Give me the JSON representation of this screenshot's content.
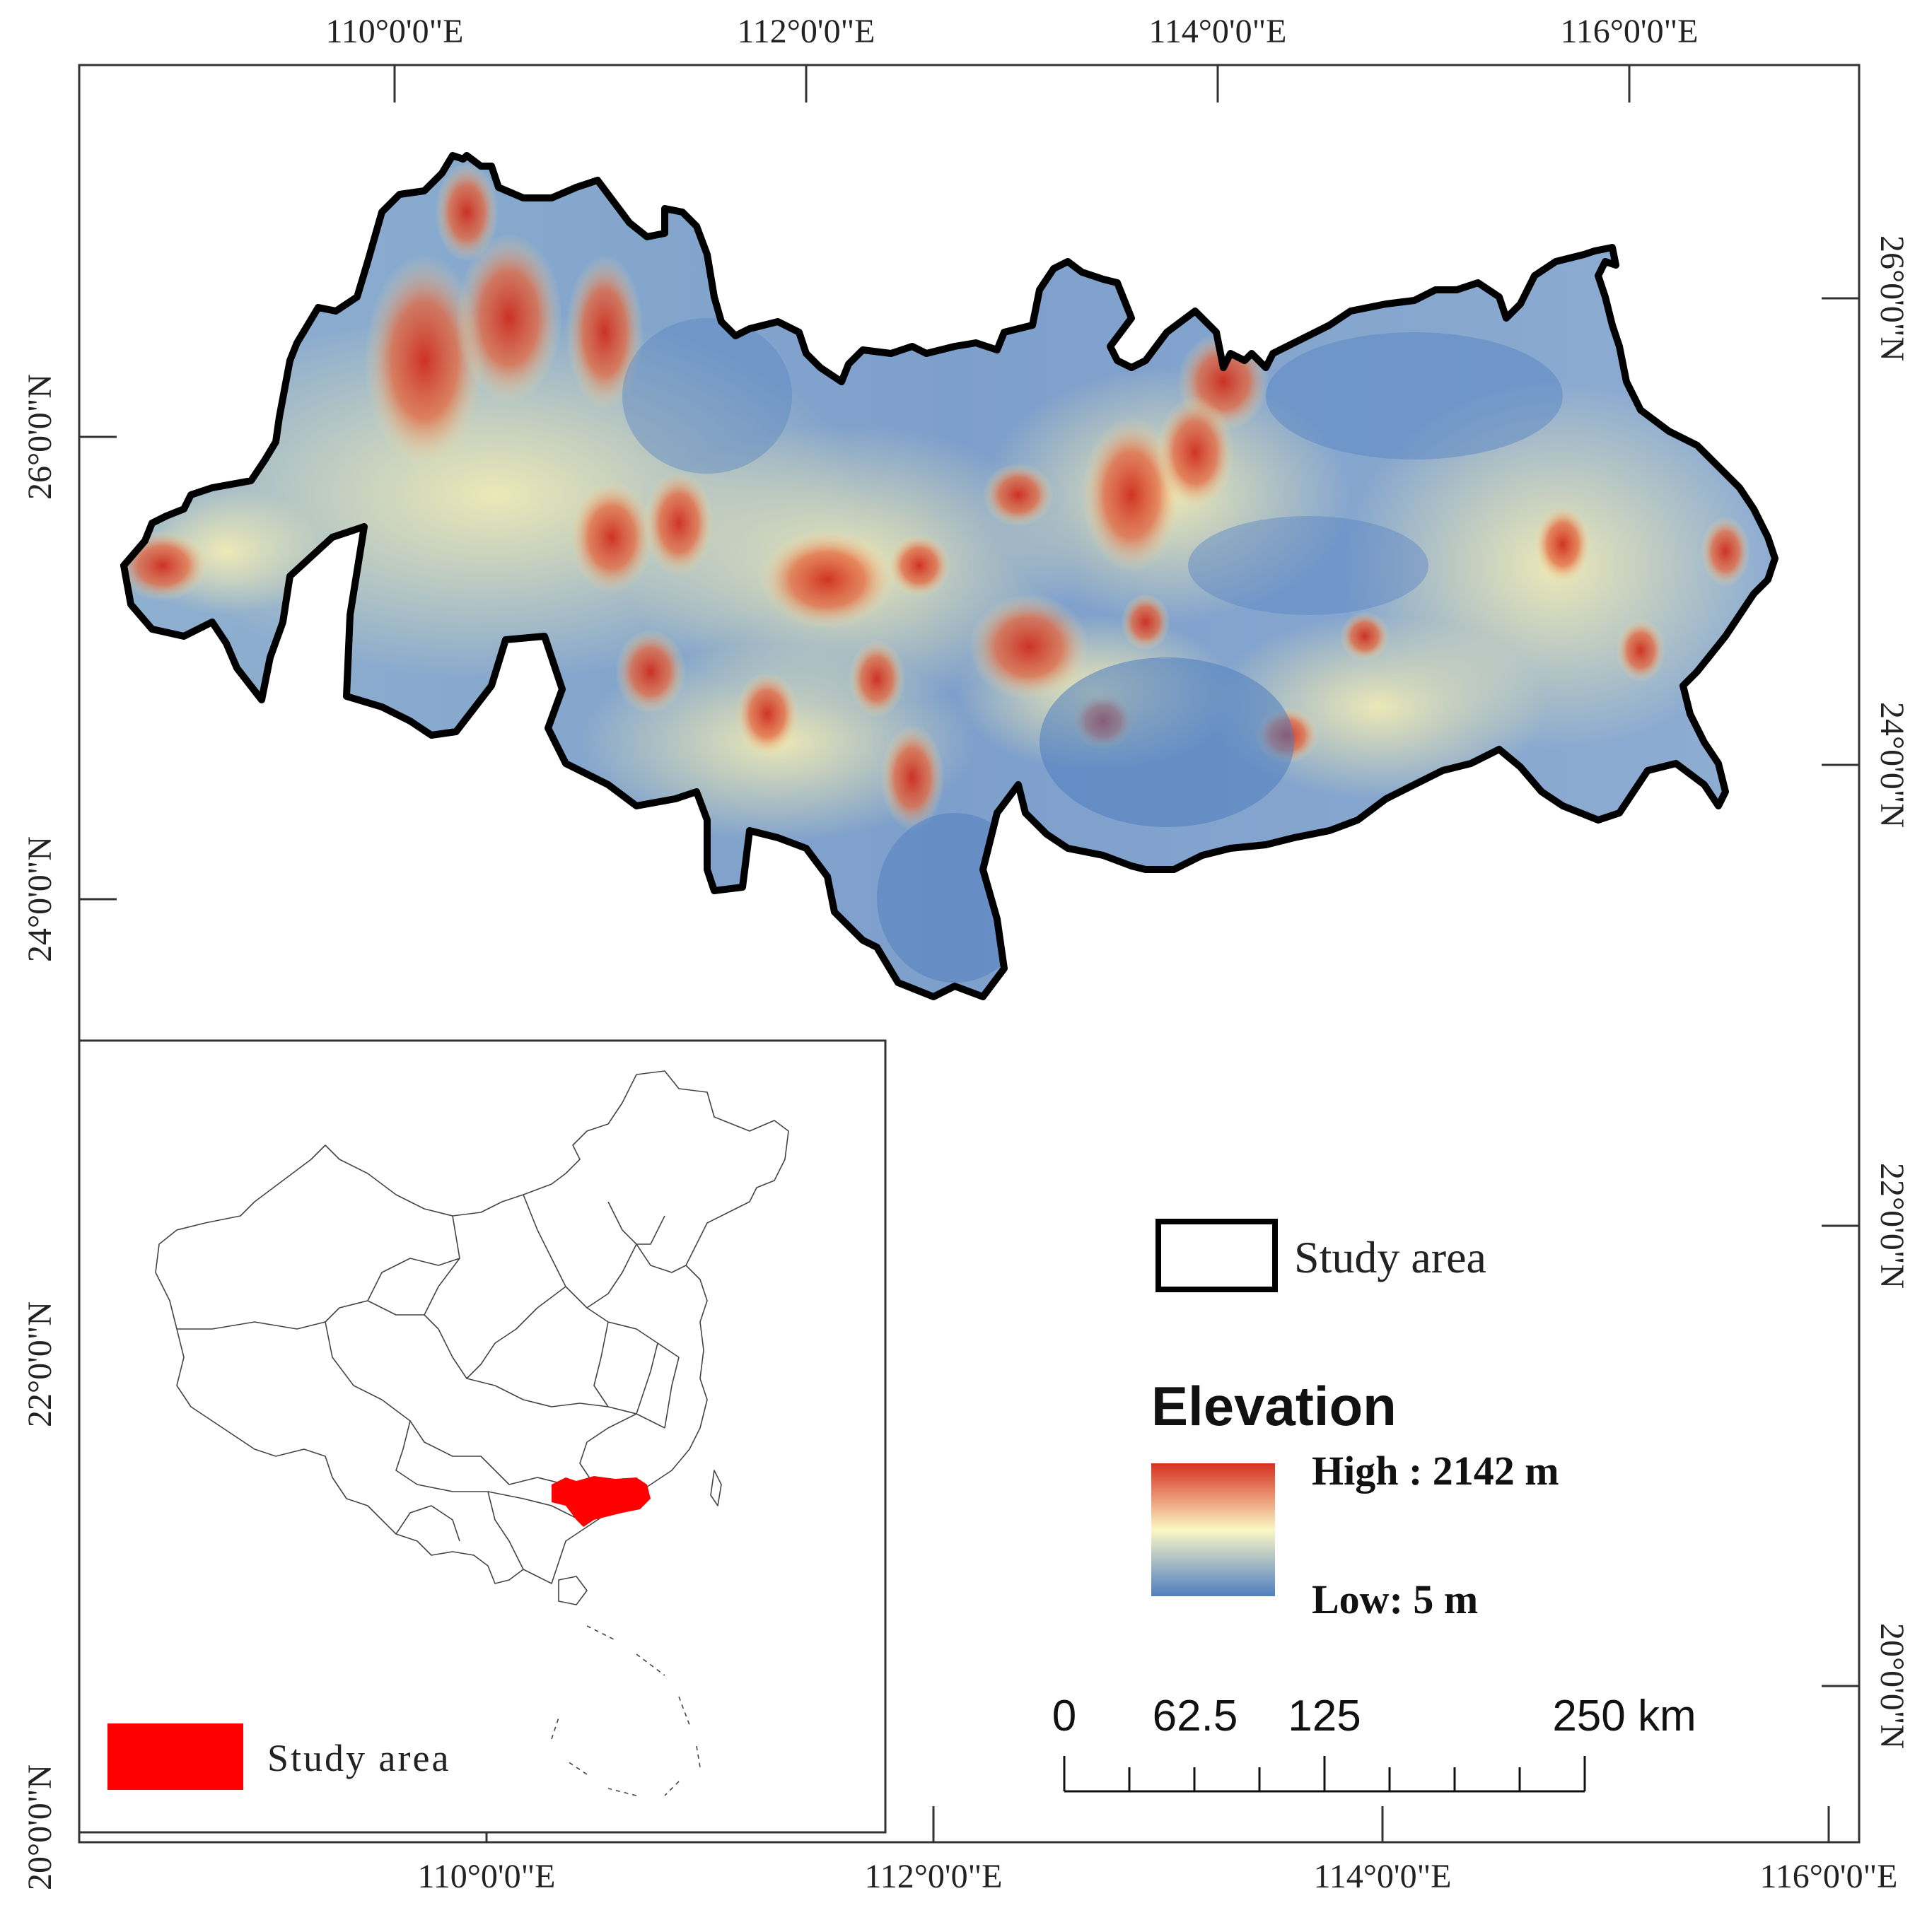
{
  "main_map": {
    "top_longitude_labels": [
      "110°0'0\"E",
      "112°0'0\"E",
      "114°0'0\"E",
      "116°0'0\"E"
    ],
    "left_latitude_labels": [
      "26°0'0\"N",
      "24°0'0\"N",
      "22°0'0\"N",
      "20°0'0\"N"
    ],
    "right_latitude_labels": [
      "26°0'0\"N",
      "24°0'0\"N",
      "22°0'0\"N",
      "20°0'0\"N"
    ],
    "bottom_longitude_labels": [
      "110°0'0\"E",
      "112°0'0\"E",
      "114°0'0\"E",
      "116°0'0\"E"
    ]
  },
  "legend": {
    "boundary_label": "Study area",
    "elevation_title": "Elevation",
    "high_label": "High : 2142 m",
    "low_label": "Low: 5 m",
    "colors": {
      "high": "#d7301f",
      "mid": "#fbf8c4",
      "low": "#4f7ec0"
    }
  },
  "scale_bar": {
    "labels": [
      "0",
      "62.5",
      "125",
      "250 km"
    ],
    "segment_km": [
      0,
      62.5,
      125,
      250
    ]
  },
  "inset": {
    "legend_label": "Study area",
    "highlight_color": "#ff0000"
  }
}
